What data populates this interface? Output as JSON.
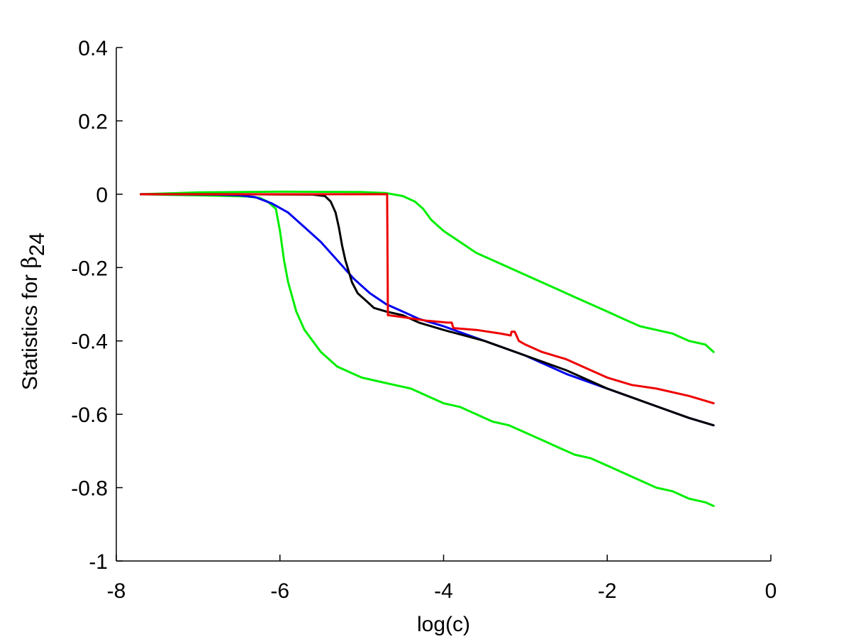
{
  "chart_data": {
    "type": "line",
    "xlabel": "log(c)",
    "ylabel": {
      "prefix": "Statistics for ",
      "symbol": "β",
      "subscript": "24"
    },
    "xlim": [
      -8,
      0
    ],
    "ylim": [
      -1,
      0.4
    ],
    "xticks": [
      -8,
      -6,
      -4,
      -2,
      0
    ],
    "xtick_labels": [
      "-8",
      "-6",
      "-4",
      "-2",
      "0"
    ],
    "yticks": [
      0.4,
      0.2,
      0,
      -0.2,
      -0.4,
      -0.6,
      -0.8,
      -1
    ],
    "ytick_labels": [
      "0.4",
      "0.2",
      "0",
      "-0.2",
      "-0.4",
      "-0.6",
      "-0.8",
      "-1"
    ],
    "grid": false,
    "series": [
      {
        "color": "#00ee00",
        "x": [
          -7.7,
          -7.0,
          -6.6,
          -6.4,
          -6.25,
          -6.15,
          -6.05,
          -6.0,
          -5.95,
          -5.9,
          -5.85,
          -5.8,
          -5.7,
          -5.6,
          -5.5,
          -5.3,
          -5.1,
          -5.0,
          -4.8,
          -4.6,
          -4.4,
          -4.2,
          -4.0,
          -3.8,
          -3.6,
          -3.4,
          -3.2,
          -3.0,
          -2.8,
          -2.6,
          -2.4,
          -2.2,
          -2.0,
          -1.8,
          -1.6,
          -1.4,
          -1.2,
          -1.0,
          -0.8,
          -0.7
        ],
        "y": [
          0.0,
          -0.003,
          -0.005,
          -0.006,
          -0.01,
          -0.02,
          -0.04,
          -0.1,
          -0.18,
          -0.24,
          -0.28,
          -0.32,
          -0.37,
          -0.4,
          -0.43,
          -0.47,
          -0.49,
          -0.5,
          -0.51,
          -0.52,
          -0.53,
          -0.55,
          -0.57,
          -0.58,
          -0.6,
          -0.62,
          -0.63,
          -0.65,
          -0.67,
          -0.69,
          -0.71,
          -0.72,
          -0.74,
          -0.76,
          -0.78,
          -0.8,
          -0.81,
          -0.83,
          -0.84,
          -0.85
        ]
      },
      {
        "color": "#00ee00",
        "x": [
          -7.7,
          -7.0,
          -6.0,
          -5.0,
          -4.7,
          -4.5,
          -4.35,
          -4.25,
          -4.15,
          -4.0,
          -3.8,
          -3.6,
          -3.4,
          -3.2,
          -3.0,
          -2.8,
          -2.6,
          -2.4,
          -2.2,
          -2.0,
          -1.8,
          -1.6,
          -1.4,
          -1.2,
          -1.0,
          -0.8,
          -0.7
        ],
        "y": [
          0.0,
          0.005,
          0.007,
          0.006,
          0.003,
          -0.005,
          -0.02,
          -0.04,
          -0.07,
          -0.1,
          -0.13,
          -0.16,
          -0.18,
          -0.2,
          -0.22,
          -0.24,
          -0.26,
          -0.28,
          -0.3,
          -0.32,
          -0.34,
          -0.36,
          -0.37,
          -0.38,
          -0.4,
          -0.41,
          -0.43
        ]
      },
      {
        "color": "#0000ee",
        "x": [
          -7.7,
          -6.8,
          -6.5,
          -6.3,
          -6.1,
          -5.9,
          -5.7,
          -5.5,
          -5.3,
          -5.1,
          -4.9,
          -4.7,
          -4.5,
          -4.3,
          -4.0,
          -3.5,
          -3.0,
          -2.5,
          -2.0,
          -1.5,
          -1.0,
          -0.7
        ],
        "y": [
          0.0,
          -0.001,
          -0.003,
          -0.008,
          -0.025,
          -0.05,
          -0.09,
          -0.13,
          -0.18,
          -0.23,
          -0.27,
          -0.3,
          -0.32,
          -0.34,
          -0.36,
          -0.4,
          -0.44,
          -0.49,
          -0.53,
          -0.57,
          -0.61,
          -0.63
        ]
      },
      {
        "color": "#000000",
        "x": [
          -7.7,
          -6.5,
          -5.6,
          -5.45,
          -5.38,
          -5.32,
          -5.28,
          -5.24,
          -5.2,
          -5.16,
          -5.12,
          -5.05,
          -4.95,
          -4.85,
          -4.7,
          -4.5,
          -4.3,
          -4.0,
          -3.5,
          -3.0,
          -2.5,
          -2.0,
          -1.5,
          -1.0,
          -0.7
        ],
        "y": [
          0.0,
          0.0,
          -0.001,
          -0.005,
          -0.02,
          -0.05,
          -0.09,
          -0.14,
          -0.18,
          -0.21,
          -0.24,
          -0.27,
          -0.29,
          -0.31,
          -0.32,
          -0.33,
          -0.35,
          -0.37,
          -0.4,
          -0.44,
          -0.48,
          -0.53,
          -0.57,
          -0.61,
          -0.63
        ]
      },
      {
        "color": "#ee0000",
        "x": [
          -7.7,
          -6.0,
          -4.69,
          -4.68,
          -4.67,
          -4.5,
          -4.2,
          -3.95,
          -3.9,
          -3.88,
          -3.6,
          -3.3,
          -3.18,
          -3.17,
          -3.13,
          -3.11,
          -3.08,
          -3.0,
          -2.8,
          -2.5,
          -2.2,
          -2.0,
          -1.7,
          -1.4,
          -1.0,
          -0.7
        ],
        "y": [
          0.0,
          0.0,
          0.0,
          -0.33,
          -0.33,
          -0.335,
          -0.345,
          -0.35,
          -0.35,
          -0.365,
          -0.37,
          -0.38,
          -0.385,
          -0.375,
          -0.375,
          -0.385,
          -0.4,
          -0.41,
          -0.43,
          -0.45,
          -0.48,
          -0.5,
          -0.52,
          -0.53,
          -0.55,
          -0.57
        ]
      }
    ]
  }
}
